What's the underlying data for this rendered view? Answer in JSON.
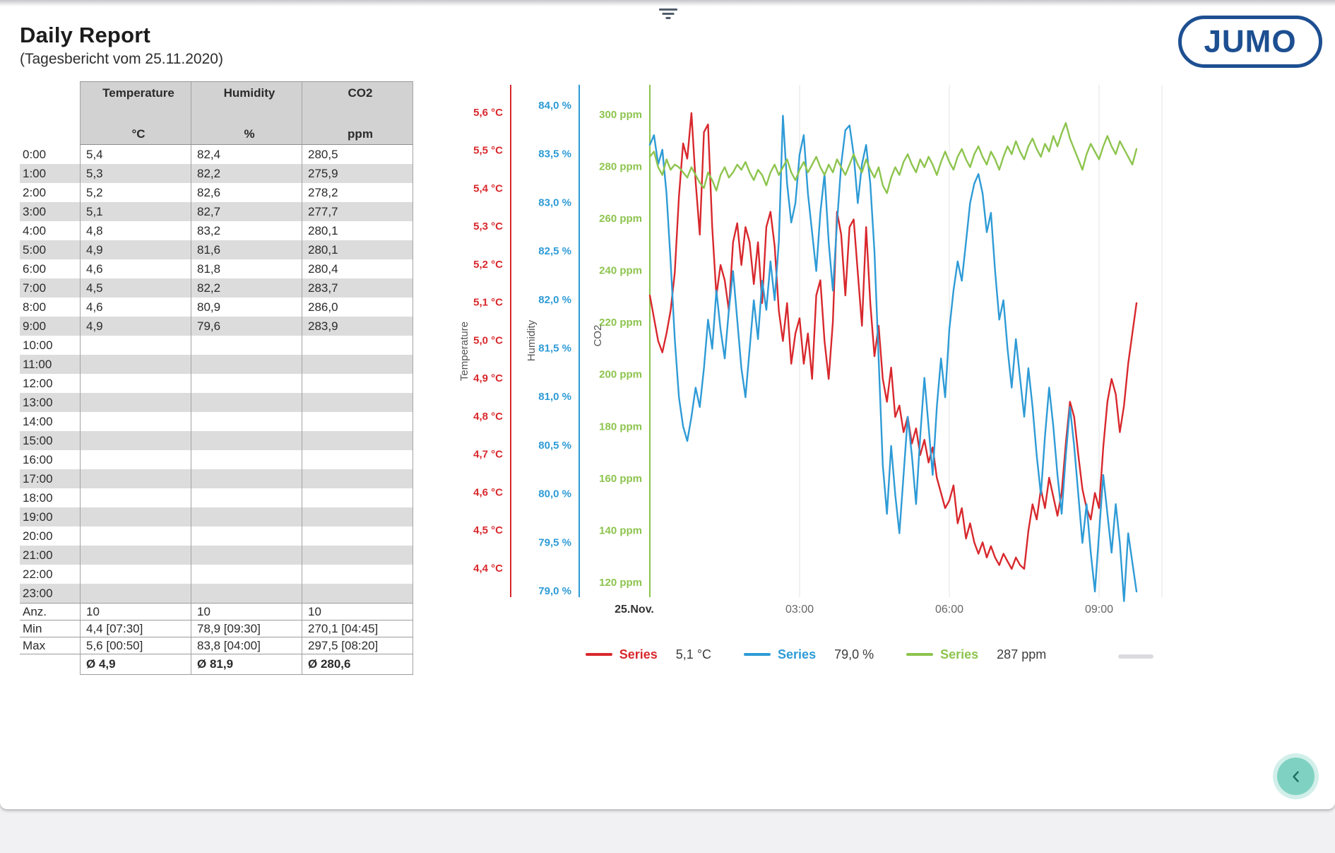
{
  "header": {
    "title": "Daily Report",
    "subtitle": "(Tagesbericht vom 25.11.2020)",
    "logo_text": "JUMO",
    "logo_color": "#1d4f91",
    "filter_icon": "filter-icon"
  },
  "table": {
    "columns": [
      {
        "label": "Temperature",
        "unit": "°C"
      },
      {
        "label": "Humidity",
        "unit": "%"
      },
      {
        "label": "CO2",
        "unit": "ppm"
      }
    ],
    "rows": [
      {
        "time": "0:00",
        "values": [
          "5,4",
          "82,4",
          "280,5"
        ]
      },
      {
        "time": "1:00",
        "values": [
          "5,3",
          "82,2",
          "275,9"
        ]
      },
      {
        "time": "2:00",
        "values": [
          "5,2",
          "82,6",
          "278,2"
        ]
      },
      {
        "time": "3:00",
        "values": [
          "5,1",
          "82,7",
          "277,7"
        ]
      },
      {
        "time": "4:00",
        "values": [
          "4,8",
          "83,2",
          "280,1"
        ]
      },
      {
        "time": "5:00",
        "values": [
          "4,9",
          "81,6",
          "280,1"
        ]
      },
      {
        "time": "6:00",
        "values": [
          "4,6",
          "81,8",
          "280,4"
        ]
      },
      {
        "time": "7:00",
        "values": [
          "4,5",
          "82,2",
          "283,7"
        ]
      },
      {
        "time": "8:00",
        "values": [
          "4,6",
          "80,9",
          "286,0"
        ]
      },
      {
        "time": "9:00",
        "values": [
          "4,9",
          "79,6",
          "283,9"
        ]
      },
      {
        "time": "10:00",
        "values": [
          "",
          "",
          ""
        ]
      },
      {
        "time": "11:00",
        "values": [
          "",
          "",
          ""
        ]
      },
      {
        "time": "12:00",
        "values": [
          "",
          "",
          ""
        ]
      },
      {
        "time": "13:00",
        "values": [
          "",
          "",
          ""
        ]
      },
      {
        "time": "14:00",
        "values": [
          "",
          "",
          ""
        ]
      },
      {
        "time": "15:00",
        "values": [
          "",
          "",
          ""
        ]
      },
      {
        "time": "16:00",
        "values": [
          "",
          "",
          ""
        ]
      },
      {
        "time": "17:00",
        "values": [
          "",
          "",
          ""
        ]
      },
      {
        "time": "18:00",
        "values": [
          "",
          "",
          ""
        ]
      },
      {
        "time": "19:00",
        "values": [
          "",
          "",
          ""
        ]
      },
      {
        "time": "20:00",
        "values": [
          "",
          "",
          ""
        ]
      },
      {
        "time": "21:00",
        "values": [
          "",
          "",
          ""
        ]
      },
      {
        "time": "22:00",
        "values": [
          "",
          "",
          ""
        ]
      },
      {
        "time": "23:00",
        "values": [
          "",
          "",
          ""
        ]
      }
    ],
    "stats": [
      {
        "label": "Anz.",
        "values": [
          "10",
          "10",
          "10"
        ]
      },
      {
        "label": "Min",
        "values": [
          "4,4 [07:30]",
          "78,9 [09:30]",
          "270,1 [04:45]"
        ]
      },
      {
        "label": "Max",
        "values": [
          "5,6 [00:50]",
          "83,8 [04:00]",
          "297,5 [08:20]"
        ]
      }
    ],
    "averages": {
      "label": "",
      "values": [
        "Ø 4,9",
        "Ø 81,9",
        "Ø 280,6"
      ]
    }
  },
  "chart_data": {
    "type": "line",
    "x_axis": {
      "start": "00:00",
      "end": "09:45",
      "step_minutes": 5,
      "tick_minutes": [
        0,
        180,
        360,
        540
      ],
      "tick_labels": [
        "25.Nov.",
        "03:00",
        "06:00",
        "09:00"
      ],
      "grid": true
    },
    "y_axes": [
      {
        "id": "temperature",
        "title": "Temperature",
        "unit": "°C",
        "min": 4.4,
        "max": 5.6,
        "tick_step": 0.1,
        "color": "#d8282d",
        "tick_labels": [
          "5,6 °C",
          "5,5 °C",
          "5,4 °C",
          "5,3 °C",
          "5,2 °C",
          "5,1 °C",
          "5,0 °C",
          "4,9 °C",
          "4,8 °C",
          "4,7 °C",
          "4,6 °C",
          "4,5 °C",
          "4,4 °C"
        ]
      },
      {
        "id": "humidity",
        "title": "Humidity",
        "unit": "%",
        "min": 79.0,
        "max": 84.0,
        "tick_step": 0.5,
        "color": "#2e9bd6",
        "tick_labels": [
          "84,0 %",
          "83,5 %",
          "83,0 %",
          "82,5 %",
          "82,0 %",
          "81,5 %",
          "81,0 %",
          "80,5 %",
          "80,0 %",
          "79,5 %",
          "79,0 %"
        ]
      },
      {
        "id": "co2",
        "title": "CO2",
        "unit": "ppm",
        "min": 120,
        "max": 300,
        "tick_step": 20,
        "color": "#8dc44e",
        "tick_labels": [
          "300 ppm",
          "280 ppm",
          "260 ppm",
          "240 ppm",
          "220 ppm",
          "200 ppm",
          "180 ppm",
          "160 ppm",
          "140 ppm",
          "120 ppm"
        ]
      }
    ],
    "series": [
      {
        "name": "Series",
        "axis": "temperature",
        "unit": "°C",
        "color": "#d8282d",
        "last_value_label": "5,1 °C",
        "values": [
          5.12,
          5.06,
          5.0,
          4.97,
          5.02,
          5.08,
          5.18,
          5.38,
          5.52,
          5.48,
          5.6,
          5.42,
          5.28,
          5.55,
          5.57,
          5.3,
          5.12,
          5.2,
          5.16,
          5.08,
          5.26,
          5.31,
          5.2,
          5.3,
          5.26,
          5.15,
          5.26,
          5.1,
          5.3,
          5.34,
          5.25,
          5.08,
          5.0,
          5.1,
          4.94,
          5.02,
          5.06,
          4.94,
          5.02,
          4.9,
          5.12,
          5.16,
          5.0,
          4.9,
          5.05,
          5.34,
          5.28,
          5.12,
          5.3,
          5.32,
          5.18,
          5.04,
          5.3,
          5.1,
          4.96,
          5.04,
          4.9,
          4.84,
          4.93,
          4.8,
          4.83,
          4.76,
          4.8,
          4.73,
          4.77,
          4.7,
          4.74,
          4.68,
          4.72,
          4.64,
          4.6,
          4.56,
          4.58,
          4.62,
          4.52,
          4.56,
          4.48,
          4.52,
          4.47,
          4.44,
          4.47,
          4.43,
          4.46,
          4.43,
          4.41,
          4.44,
          4.42,
          4.4,
          4.43,
          4.41,
          4.4,
          4.5,
          4.57,
          4.53,
          4.61,
          4.56,
          4.64,
          4.59,
          4.54,
          4.6,
          4.73,
          4.84,
          4.8,
          4.7,
          4.61,
          4.56,
          4.53,
          4.6,
          4.56,
          4.72,
          4.84,
          4.9,
          4.86,
          4.76,
          4.83,
          4.94,
          5.02,
          5.1
        ]
      },
      {
        "name": "Series",
        "axis": "humidity",
        "unit": "%",
        "color": "#2e9bd6",
        "last_value_label": "79,0 %",
        "values": [
          83.6,
          83.7,
          83.4,
          83.55,
          83.1,
          82.4,
          81.6,
          81.0,
          80.7,
          80.55,
          80.8,
          81.1,
          80.9,
          81.3,
          81.8,
          81.5,
          82.1,
          81.7,
          81.4,
          81.9,
          82.3,
          81.8,
          81.3,
          81.0,
          81.5,
          82.0,
          81.6,
          82.2,
          81.9,
          82.4,
          82.0,
          82.6,
          83.9,
          83.2,
          82.8,
          83.0,
          83.5,
          83.7,
          83.1,
          82.7,
          82.3,
          82.9,
          83.3,
          82.6,
          82.1,
          82.8,
          83.4,
          83.75,
          83.8,
          83.5,
          83.0,
          83.4,
          83.6,
          83.2,
          82.5,
          81.4,
          80.3,
          79.8,
          80.5,
          80.0,
          79.6,
          80.2,
          80.8,
          80.4,
          79.9,
          80.6,
          81.2,
          80.7,
          80.2,
          80.9,
          81.4,
          81.0,
          81.7,
          82.1,
          82.4,
          82.2,
          82.6,
          83.0,
          83.2,
          83.3,
          83.1,
          82.7,
          82.9,
          82.3,
          81.8,
          82.0,
          81.5,
          81.1,
          81.6,
          81.2,
          80.8,
          81.3,
          80.9,
          80.4,
          80.0,
          80.6,
          81.1,
          80.7,
          80.2,
          79.8,
          80.4,
          80.9,
          80.5,
          80.0,
          79.5,
          79.9,
          79.4,
          79.0,
          79.6,
          80.2,
          79.8,
          79.4,
          79.9,
          79.5,
          78.9,
          79.6,
          79.3,
          79.0
        ]
      },
      {
        "name": "Series",
        "axis": "co2",
        "unit": "ppm",
        "color": "#8dc44e",
        "last_value_label": "287 ppm",
        "values": [
          284,
          286,
          280,
          277,
          283,
          279,
          281,
          280,
          278,
          276,
          280,
          277,
          274,
          272,
          278,
          275,
          271,
          277,
          280,
          276,
          278,
          281,
          279,
          282,
          278,
          275,
          279,
          277,
          273,
          278,
          281,
          277,
          280,
          283,
          278,
          275,
          279,
          282,
          278,
          281,
          284,
          280,
          277,
          281,
          278,
          283,
          280,
          277,
          281,
          285,
          281,
          278,
          283,
          279,
          276,
          280,
          273,
          270,
          276,
          280,
          277,
          282,
          285,
          281,
          278,
          283,
          280,
          284,
          281,
          277,
          282,
          286,
          282,
          279,
          284,
          287,
          283,
          280,
          285,
          288,
          284,
          281,
          286,
          283,
          279,
          284,
          288,
          285,
          290,
          286,
          283,
          288,
          291,
          287,
          284,
          289,
          286,
          292,
          288,
          293,
          297,
          291,
          287,
          283,
          279,
          285,
          289,
          286,
          283,
          288,
          292,
          288,
          285,
          290,
          287,
          284,
          281,
          287
        ]
      }
    ]
  },
  "fab": {
    "icon": "chevron-left-icon"
  }
}
